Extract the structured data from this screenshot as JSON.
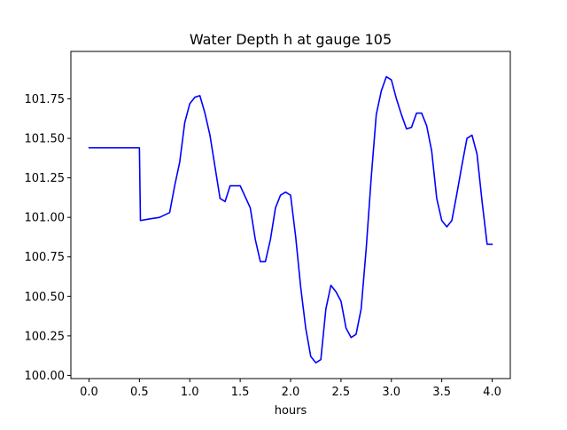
{
  "chart_data": {
    "type": "line",
    "title": "Water Depth h at gauge 105",
    "xlabel": "hours",
    "ylabel": "",
    "xlim": [
      -0.18,
      4.18
    ],
    "ylim": [
      99.98,
      102.05
    ],
    "xticks": [
      0,
      0.5,
      1,
      1.5,
      2,
      2.5,
      3,
      3.5,
      4
    ],
    "xtick_labels": [
      "0.0",
      "0.5",
      "1.0",
      "1.5",
      "2.0",
      "2.5",
      "3.0",
      "3.5",
      "4.0"
    ],
    "yticks": [
      100.0,
      100.25,
      100.5,
      100.75,
      101.0,
      101.25,
      101.5,
      101.75
    ],
    "ytick_labels": [
      "100.00",
      "100.25",
      "100.50",
      "100.75",
      "101.00",
      "101.25",
      "101.50",
      "101.75"
    ],
    "grid": false,
    "series": [
      {
        "color": "#0000ff",
        "x": [
          0.0,
          0.1,
          0.2,
          0.3,
          0.4,
          0.5,
          0.51,
          0.6,
          0.7,
          0.8,
          0.85,
          0.9,
          0.95,
          1.0,
          1.05,
          1.1,
          1.15,
          1.2,
          1.25,
          1.3,
          1.35,
          1.4,
          1.45,
          1.5,
          1.55,
          1.6,
          1.65,
          1.7,
          1.75,
          1.8,
          1.85,
          1.9,
          1.95,
          2.0,
          2.05,
          2.1,
          2.15,
          2.2,
          2.25,
          2.3,
          2.35,
          2.4,
          2.45,
          2.5,
          2.55,
          2.6,
          2.65,
          2.7,
          2.75,
          2.8,
          2.85,
          2.9,
          2.95,
          3.0,
          3.05,
          3.1,
          3.15,
          3.2,
          3.25,
          3.3,
          3.35,
          3.4,
          3.45,
          3.5,
          3.55,
          3.6,
          3.65,
          3.7,
          3.75,
          3.8,
          3.85,
          3.9,
          3.95,
          4.0
        ],
        "y": [
          101.44,
          101.44,
          101.44,
          101.44,
          101.44,
          101.44,
          100.98,
          100.99,
          101.0,
          101.03,
          101.2,
          101.35,
          101.6,
          101.72,
          101.76,
          101.77,
          101.66,
          101.52,
          101.32,
          101.12,
          101.1,
          101.2,
          101.2,
          101.2,
          101.13,
          101.06,
          100.86,
          100.72,
          100.72,
          100.86,
          101.06,
          101.14,
          101.16,
          101.14,
          100.88,
          100.56,
          100.3,
          100.12,
          100.08,
          100.1,
          100.42,
          100.57,
          100.53,
          100.47,
          100.3,
          100.24,
          100.26,
          100.42,
          100.8,
          101.25,
          101.65,
          101.8,
          101.89,
          101.87,
          101.75,
          101.65,
          101.56,
          101.57,
          101.66,
          101.66,
          101.58,
          101.42,
          101.12,
          100.98,
          100.94,
          100.98,
          101.15,
          101.33,
          101.5,
          101.52,
          101.4,
          101.1,
          100.83,
          100.83
        ]
      }
    ]
  }
}
